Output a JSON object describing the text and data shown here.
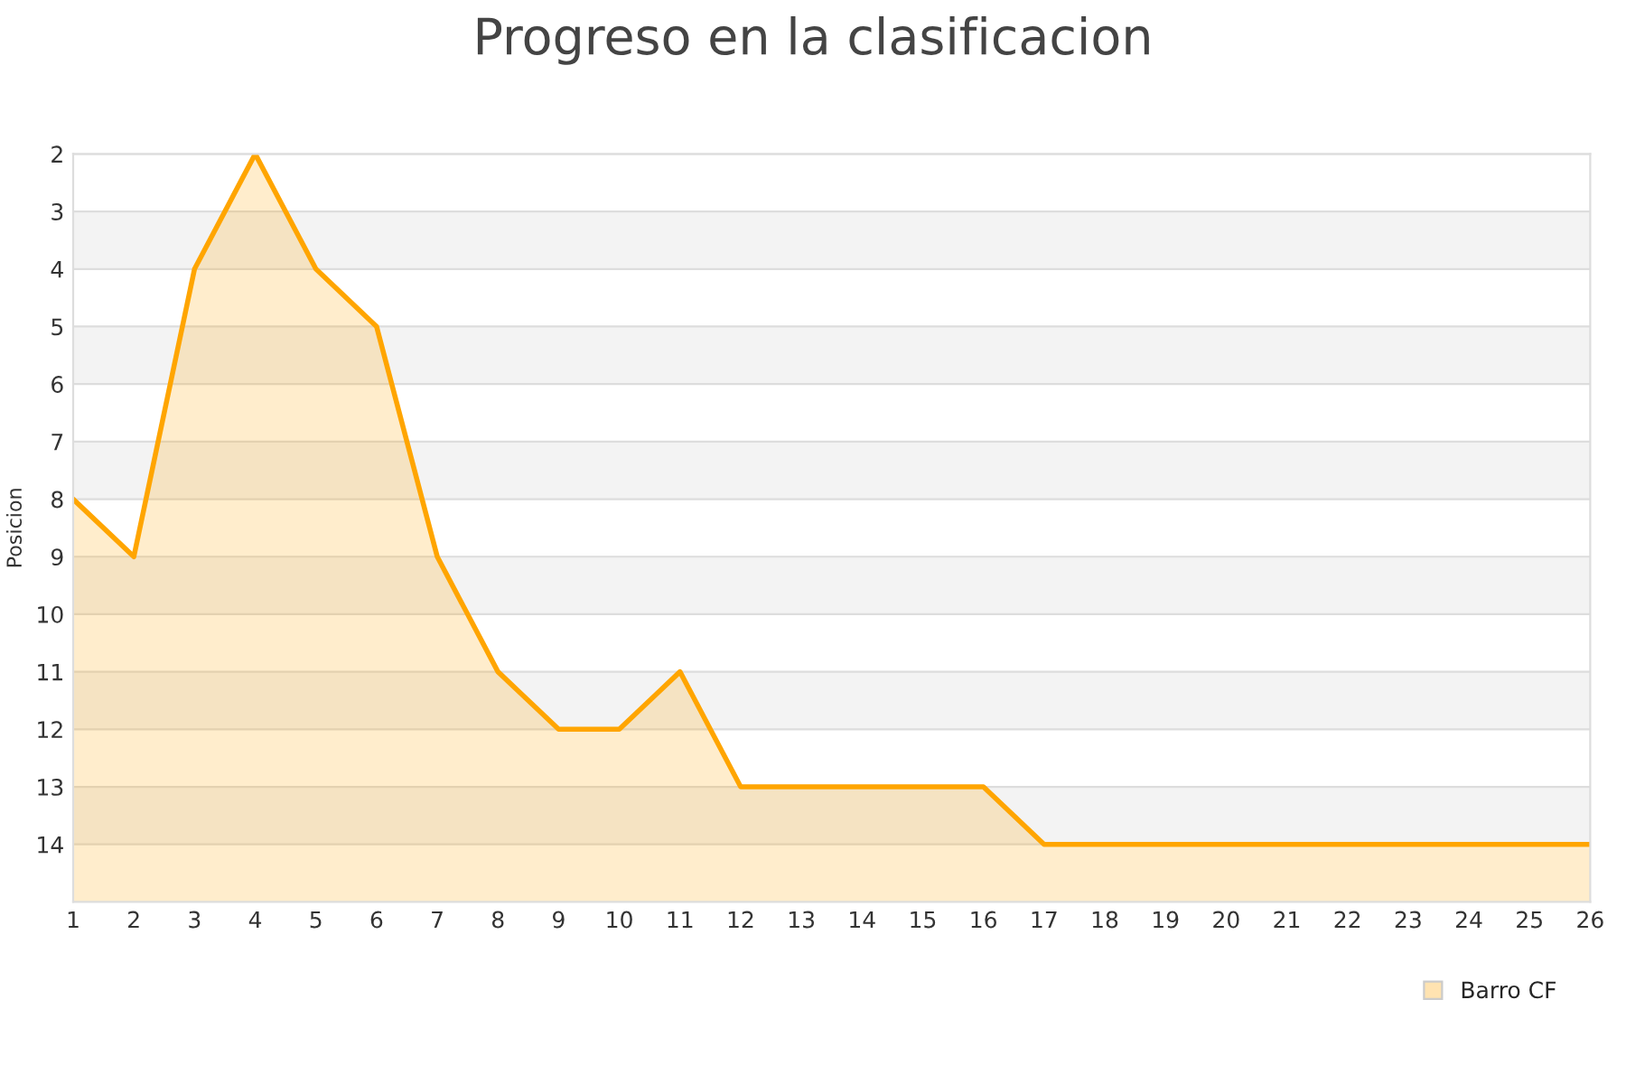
{
  "chart_data": {
    "type": "line",
    "title": "Progreso en la clasificacion",
    "ylabel": "Posicion",
    "x": [
      1,
      2,
      3,
      4,
      5,
      6,
      7,
      8,
      9,
      10,
      11,
      12,
      13,
      14,
      15,
      16,
      17,
      18,
      19,
      20,
      21,
      22,
      23,
      24,
      25,
      26
    ],
    "series": [
      {
        "name": "Barro CF",
        "color": "#ffa500",
        "values": [
          8,
          9,
          4,
          2,
          4,
          5,
          9,
          11,
          12,
          12,
          11,
          13,
          13,
          13,
          13,
          13,
          14,
          14,
          14,
          14,
          14,
          14,
          14,
          14,
          14,
          14
        ],
        "lower": [
          8,
          9,
          4,
          2,
          4,
          5,
          9,
          11,
          12,
          12,
          11,
          13,
          13,
          13,
          13,
          13,
          14,
          14,
          14,
          14,
          14,
          14,
          14,
          14,
          14,
          14
        ],
        "upper": [
          15,
          15,
          15,
          15,
          15,
          15,
          15,
          15,
          15,
          15,
          15,
          15,
          15,
          15,
          15,
          15,
          15,
          15,
          15,
          15,
          15,
          15,
          15,
          15,
          15,
          15
        ]
      }
    ],
    "xlim": [
      1,
      26
    ],
    "xticks": [
      1,
      2,
      3,
      4,
      5,
      6,
      7,
      8,
      9,
      10,
      11,
      12,
      13,
      14,
      15,
      16,
      17,
      18,
      19,
      20,
      21,
      22,
      23,
      24,
      25,
      26
    ],
    "ylim": [
      15,
      2
    ],
    "yticks": [
      2,
      3,
      4,
      5,
      6,
      7,
      8,
      9,
      10,
      11,
      12,
      13,
      14
    ],
    "grid": "y",
    "legend": "bottom right",
    "marker": "none",
    "line_style": "solid"
  }
}
